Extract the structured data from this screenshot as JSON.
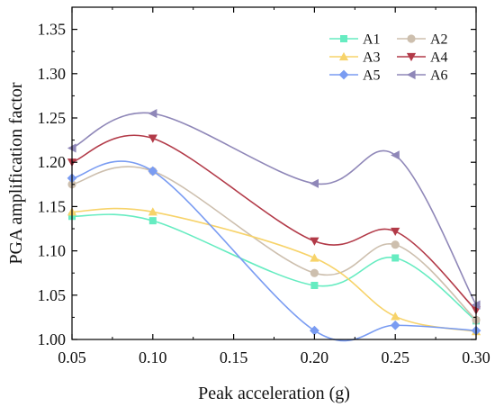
{
  "chart_data": {
    "type": "line",
    "title": "",
    "xlabel": "Peak acceleration (g)",
    "ylabel": "PGA amplification factor",
    "x": [
      0.05,
      0.1,
      0.2,
      0.25,
      0.3
    ],
    "x_tick_labels": [
      "0.05",
      "0.10",
      "0.15",
      "0.20",
      "0.25",
      "0.30"
    ],
    "x_ticks": [
      0.05,
      0.1,
      0.15,
      0.2,
      0.25,
      0.3
    ],
    "xlim": [
      0.05,
      0.3
    ],
    "y_tick_labels": [
      "1.00",
      "1.05",
      "1.10",
      "1.15",
      "1.20",
      "1.25",
      "1.30",
      "1.35"
    ],
    "y_ticks": [
      1.0,
      1.05,
      1.1,
      1.15,
      1.2,
      1.25,
      1.3,
      1.35
    ],
    "ylim": [
      1.0,
      1.375
    ],
    "grid": false,
    "legend_position": "top-right",
    "series": [
      {
        "name": "A1",
        "values": [
          1.139,
          1.134,
          1.061,
          1.092,
          1.021
        ],
        "color": "#66ecc1",
        "marker": "square"
      },
      {
        "name": "A2",
        "values": [
          1.175,
          1.19,
          1.075,
          1.107,
          1.022
        ],
        "color": "#cdbfae",
        "marker": "circle"
      },
      {
        "name": "A3",
        "values": [
          1.144,
          1.144,
          1.092,
          1.026,
          1.009
        ],
        "color": "#f7d36a",
        "marker": "triangle-up"
      },
      {
        "name": "A4",
        "values": [
          1.2,
          1.227,
          1.111,
          1.122,
          1.033
        ],
        "color": "#b23a48",
        "marker": "triangle-down"
      },
      {
        "name": "A5",
        "values": [
          1.182,
          1.19,
          1.01,
          1.016,
          1.01
        ],
        "color": "#7a9cf2",
        "marker": "diamond"
      },
      {
        "name": "A6",
        "values": [
          1.216,
          1.255,
          1.176,
          1.208,
          1.039
        ],
        "color": "#8f87b8",
        "marker": "triangle-left"
      }
    ]
  }
}
